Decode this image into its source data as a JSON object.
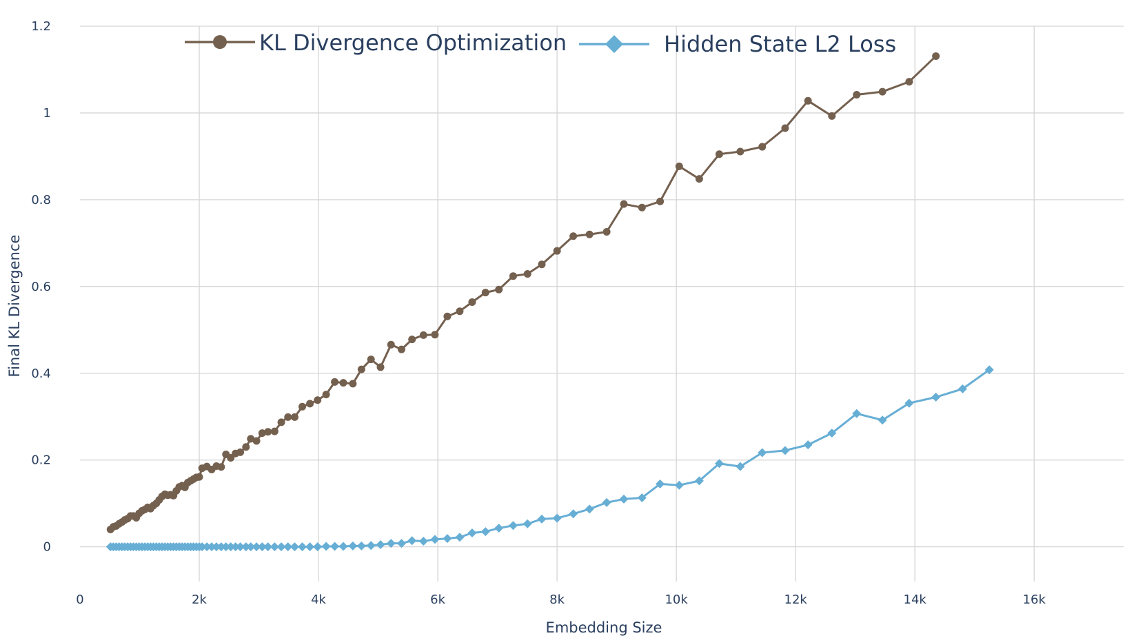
{
  "chart_data": {
    "type": "line",
    "title": "",
    "xlabel": "Embedding Size",
    "ylabel": "Final KL Divergence",
    "xlim": [
      0,
      17500
    ],
    "ylim": [
      -0.08,
      1.2
    ],
    "grid": true,
    "legend_position": "top",
    "x_ticks": [
      {
        "value": 0,
        "label": "0"
      },
      {
        "value": 2000,
        "label": "2k"
      },
      {
        "value": 4000,
        "label": "4k"
      },
      {
        "value": 6000,
        "label": "6k"
      },
      {
        "value": 8000,
        "label": "8k"
      },
      {
        "value": 10000,
        "label": "10k"
      },
      {
        "value": 12000,
        "label": "12k"
      },
      {
        "value": 14000,
        "label": "14k"
      },
      {
        "value": 16000,
        "label": "16k"
      }
    ],
    "y_ticks": [
      {
        "value": 0,
        "label": "0"
      },
      {
        "value": 0.2,
        "label": "0.2"
      },
      {
        "value": 0.4,
        "label": "0.4"
      },
      {
        "value": 0.6,
        "label": "0.6"
      },
      {
        "value": 0.8,
        "label": "0.8"
      },
      {
        "value": 1.0,
        "label": "1"
      },
      {
        "value": 1.2,
        "label": "1.2"
      }
    ],
    "series": [
      {
        "name": "KL Divergence Optimization",
        "color": "#74604f",
        "marker": "circle",
        "points": [
          [
            512,
            0.04
          ],
          [
            560,
            0.046
          ],
          [
            608,
            0.048
          ],
          [
            656,
            0.053
          ],
          [
            704,
            0.057
          ],
          [
            752,
            0.062
          ],
          [
            800,
            0.065
          ],
          [
            848,
            0.071
          ],
          [
            896,
            0.071
          ],
          [
            944,
            0.067
          ],
          [
            992,
            0.077
          ],
          [
            1040,
            0.083
          ],
          [
            1088,
            0.086
          ],
          [
            1136,
            0.091
          ],
          [
            1184,
            0.088
          ],
          [
            1232,
            0.095
          ],
          [
            1280,
            0.1
          ],
          [
            1328,
            0.108
          ],
          [
            1376,
            0.116
          ],
          [
            1424,
            0.121
          ],
          [
            1472,
            0.119
          ],
          [
            1520,
            0.12
          ],
          [
            1568,
            0.118
          ],
          [
            1616,
            0.129
          ],
          [
            1664,
            0.138
          ],
          [
            1712,
            0.141
          ],
          [
            1760,
            0.137
          ],
          [
            1808,
            0.148
          ],
          [
            1856,
            0.152
          ],
          [
            1904,
            0.156
          ],
          [
            1952,
            0.16
          ],
          [
            2000,
            0.161
          ],
          [
            2048,
            0.181
          ],
          [
            2128,
            0.185
          ],
          [
            2208,
            0.178
          ],
          [
            2288,
            0.186
          ],
          [
            2368,
            0.184
          ],
          [
            2448,
            0.213
          ],
          [
            2528,
            0.205
          ],
          [
            2608,
            0.215
          ],
          [
            2688,
            0.218
          ],
          [
            2784,
            0.23
          ],
          [
            2864,
            0.249
          ],
          [
            2960,
            0.244
          ],
          [
            3056,
            0.262
          ],
          [
            3152,
            0.265
          ],
          [
            3264,
            0.266
          ],
          [
            3376,
            0.287
          ],
          [
            3488,
            0.299
          ],
          [
            3600,
            0.299
          ],
          [
            3728,
            0.323
          ],
          [
            3856,
            0.33
          ],
          [
            3984,
            0.338
          ],
          [
            4128,
            0.351
          ],
          [
            4272,
            0.38
          ],
          [
            4416,
            0.378
          ],
          [
            4576,
            0.376
          ],
          [
            4720,
            0.409
          ],
          [
            4880,
            0.432
          ],
          [
            5040,
            0.414
          ],
          [
            5216,
            0.466
          ],
          [
            5392,
            0.455
          ],
          [
            5568,
            0.478
          ],
          [
            5760,
            0.488
          ],
          [
            5952,
            0.489
          ],
          [
            6160,
            0.531
          ],
          [
            6368,
            0.543
          ],
          [
            6576,
            0.564
          ],
          [
            6800,
            0.586
          ],
          [
            7024,
            0.593
          ],
          [
            7264,
            0.624
          ],
          [
            7504,
            0.629
          ],
          [
            7744,
            0.651
          ],
          [
            8000,
            0.682
          ],
          [
            8272,
            0.716
          ],
          [
            8544,
            0.72
          ],
          [
            8832,
            0.726
          ],
          [
            9120,
            0.79
          ],
          [
            9424,
            0.782
          ],
          [
            9728,
            0.796
          ],
          [
            10048,
            0.877
          ],
          [
            10384,
            0.848
          ],
          [
            10720,
            0.905
          ],
          [
            11072,
            0.911
          ],
          [
            11440,
            0.922
          ],
          [
            11824,
            0.965
          ],
          [
            12208,
            1.028
          ],
          [
            12608,
            0.993
          ],
          [
            13024,
            1.042
          ],
          [
            13456,
            1.049
          ],
          [
            13904,
            1.072
          ],
          [
            14352,
            1.131
          ]
        ]
      },
      {
        "name": "Hidden State L2 Loss",
        "color": "#67aed5",
        "marker": "diamond",
        "points": [
          [
            512,
            0.0
          ],
          [
            560,
            0.0
          ],
          [
            608,
            0.0
          ],
          [
            656,
            0.0
          ],
          [
            704,
            0.0
          ],
          [
            752,
            0.0
          ],
          [
            800,
            0.0
          ],
          [
            848,
            0.0
          ],
          [
            896,
            0.0
          ],
          [
            944,
            0.0
          ],
          [
            992,
            0.0
          ],
          [
            1040,
            0.0
          ],
          [
            1088,
            0.0
          ],
          [
            1136,
            0.0
          ],
          [
            1184,
            0.0
          ],
          [
            1232,
            0.0
          ],
          [
            1280,
            0.0
          ],
          [
            1328,
            0.0
          ],
          [
            1376,
            0.0
          ],
          [
            1424,
            0.0
          ],
          [
            1472,
            0.0
          ],
          [
            1520,
            0.0
          ],
          [
            1568,
            0.0
          ],
          [
            1616,
            0.0
          ],
          [
            1664,
            0.0
          ],
          [
            1712,
            0.0
          ],
          [
            1760,
            0.0
          ],
          [
            1808,
            0.0
          ],
          [
            1856,
            0.0
          ],
          [
            1904,
            0.0
          ],
          [
            1952,
            0.0
          ],
          [
            2000,
            0.0
          ],
          [
            2048,
            0.0
          ],
          [
            2128,
            0.0
          ],
          [
            2208,
            0.0
          ],
          [
            2288,
            0.0
          ],
          [
            2368,
            0.0
          ],
          [
            2448,
            0.0
          ],
          [
            2528,
            0.0
          ],
          [
            2608,
            0.0
          ],
          [
            2688,
            0.0
          ],
          [
            2784,
            0.0
          ],
          [
            2864,
            0.0
          ],
          [
            2960,
            0.0
          ],
          [
            3056,
            0.0
          ],
          [
            3152,
            0.0
          ],
          [
            3264,
            0.0
          ],
          [
            3376,
            0.0
          ],
          [
            3488,
            0.0
          ],
          [
            3600,
            0.0
          ],
          [
            3728,
            0.0
          ],
          [
            3856,
            0.0
          ],
          [
            3984,
            0.0
          ],
          [
            4128,
            0.001
          ],
          [
            4272,
            0.001
          ],
          [
            4416,
            0.001
          ],
          [
            4576,
            0.002
          ],
          [
            4720,
            0.002
          ],
          [
            4880,
            0.003
          ],
          [
            5040,
            0.005
          ],
          [
            5216,
            0.008
          ],
          [
            5392,
            0.008
          ],
          [
            5568,
            0.014
          ],
          [
            5760,
            0.013
          ],
          [
            5952,
            0.017
          ],
          [
            6160,
            0.019
          ],
          [
            6368,
            0.022
          ],
          [
            6576,
            0.032
          ],
          [
            6800,
            0.035
          ],
          [
            7024,
            0.043
          ],
          [
            7264,
            0.049
          ],
          [
            7504,
            0.053
          ],
          [
            7744,
            0.064
          ],
          [
            8000,
            0.066
          ],
          [
            8272,
            0.076
          ],
          [
            8544,
            0.087
          ],
          [
            8832,
            0.102
          ],
          [
            9120,
            0.11
          ],
          [
            9424,
            0.113
          ],
          [
            9728,
            0.145
          ],
          [
            10048,
            0.142
          ],
          [
            10384,
            0.152
          ],
          [
            10720,
            0.192
          ],
          [
            11072,
            0.185
          ],
          [
            11440,
            0.217
          ],
          [
            11824,
            0.222
          ],
          [
            12208,
            0.235
          ],
          [
            12608,
            0.262
          ],
          [
            13024,
            0.307
          ],
          [
            13456,
            0.292
          ],
          [
            13904,
            0.331
          ],
          [
            14352,
            0.345
          ],
          [
            14800,
            0.364
          ],
          [
            15248,
            0.408
          ]
        ]
      }
    ]
  }
}
